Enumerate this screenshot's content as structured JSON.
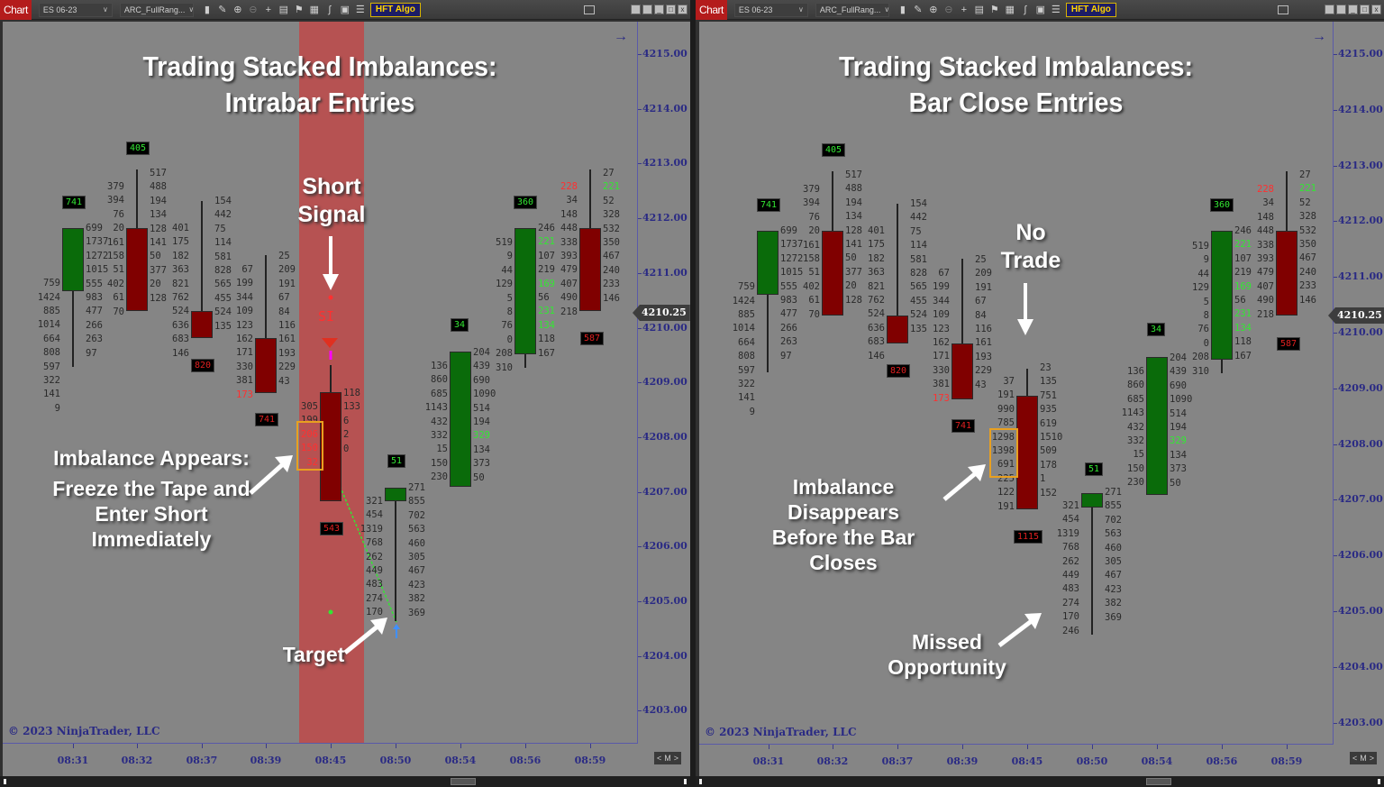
{
  "toolbar": {
    "chart_label": "Chart",
    "instrument": "ES 06-23",
    "bar_type": "ARC_FullRang...",
    "hft_button": "HFT Algo",
    "icons": [
      "bar-type-icon",
      "draw-pencil-icon",
      "zoom-in-icon",
      "zoom-out-icon",
      "crosshair-icon",
      "data-box-icon",
      "strategies-flag-icon",
      "chart-trader-icon",
      "indicators-icon",
      "templates-icon",
      "properties-list-icon"
    ]
  },
  "y_axis": {
    "labels": [
      "4215.00",
      "4214.00",
      "4213.00",
      "4212.00",
      "4211.00",
      "4210.00",
      "4209.00",
      "4208.00",
      "4207.00",
      "4206.00",
      "4205.00",
      "4204.00",
      "4203.00"
    ],
    "current_price": "4210.25"
  },
  "x_axis": {
    "labels": [
      "08:31",
      "08:32",
      "08:37",
      "08:39",
      "08:45",
      "08:50",
      "08:54",
      "08:56",
      "08:59"
    ]
  },
  "copyright": "© 2023 NinjaTrader, LLC",
  "nav_mini": {
    "prev": "<",
    "mid": "M",
    "next": ">"
  },
  "left_panel": {
    "title_line1": "Trading Stacked Imbalances:",
    "title_line2": "Intrabar Entries",
    "signal_label_line1": "Short",
    "signal_label_line2": "Signal",
    "si_marker": "SI",
    "annot_appears_line1": "Imbalance Appears:",
    "annot_appears_line2": "Freeze the Tape and",
    "annot_appears_line3": "Enter Short Immediately",
    "annot_target": "Target"
  },
  "right_panel": {
    "title_line1": "Trading Stacked Imbalances:",
    "title_line2": "Bar Close Entries",
    "no_trade_line1": "No",
    "no_trade_line2": "Trade",
    "annot_disappears_line1": "Imbalance Disappears",
    "annot_disappears_line2": "Before the Bar Closes",
    "annot_missed_line1": "Missed",
    "annot_missed_line2": "Opportunity"
  },
  "colors": {
    "bull": "#0a6b0a",
    "bear": "#800000",
    "buy_imbalance": "#33e633",
    "sell_imbalance": "#ff3030",
    "highlight_band": "#b65252",
    "axis_text": "#2a2a84",
    "imbalance_box": "#e8a020"
  },
  "footprint_bars_left": [
    {
      "time": "08:31",
      "dir": "bull",
      "delta": "741",
      "bid": [
        "",
        "",
        "",
        "759",
        "1424",
        "885",
        "1014",
        "664",
        "808",
        "597",
        "322",
        "141",
        "9"
      ],
      "ask": [
        "699",
        "1737",
        "1272",
        "1015",
        "555",
        "983",
        "477",
        "266",
        "263",
        "97",
        "",
        "",
        ""
      ]
    },
    {
      "time": "08:32",
      "dir": "bear",
      "delta": "405",
      "bid": [
        "379",
        "394",
        "76",
        "20",
        "161",
        "158",
        "51",
        "402",
        "61",
        "70"
      ],
      "ask": [
        "517",
        "488",
        "194",
        "134",
        "128",
        "141",
        "50",
        "377",
        "20",
        "128"
      ]
    },
    {
      "time": "08:37",
      "dir": "bear",
      "delta": "820",
      "bid": [
        "401",
        "175",
        "182",
        "363",
        "821",
        "762",
        "524",
        "636",
        "683",
        "146"
      ],
      "ask": [
        "154",
        "442",
        "75",
        "114",
        "581",
        "828",
        "565",
        "455",
        "524",
        "135"
      ]
    },
    {
      "time": "08:39",
      "dir": "bear",
      "delta": "741",
      "bid": [
        "67",
        "199",
        "344",
        "109",
        "123",
        "162",
        "171",
        "330",
        "381",
        "173"
      ],
      "ask": [
        "25",
        "209",
        "191",
        "67",
        "84",
        "116",
        "161",
        "193",
        "229",
        "43"
      ]
    },
    {
      "time": "08:45",
      "dir": "bear",
      "delta": "543",
      "bid": [
        "305",
        "199",
        "206",
        "150",
        "32"
      ],
      "ask": [
        "118",
        "133",
        "6",
        "2",
        "0"
      ]
    },
    {
      "time": "08:50",
      "dir": "bull",
      "delta": "51",
      "bid": [
        "321",
        "454",
        "1319",
        "768",
        "262",
        "449",
        "483",
        "274",
        "170"
      ],
      "ask": [
        "271",
        "855",
        "702",
        "563",
        "460",
        "305",
        "467",
        "423",
        "382",
        "369"
      ]
    },
    {
      "time": "08:54",
      "dir": "bull",
      "delta": "34",
      "bid": [
        "136",
        "860",
        "685",
        "1143",
        "432",
        "332",
        "15",
        "150",
        "230"
      ],
      "ask": [
        "204",
        "439",
        "690",
        "1090",
        "514",
        "194",
        "329",
        "134",
        "373",
        "50"
      ]
    },
    {
      "time": "08:56",
      "dir": "bull",
      "delta": "360",
      "bid": [
        "519",
        "9",
        "44",
        "129",
        "5",
        "8",
        "76",
        "0",
        "208",
        "310"
      ],
      "ask": [
        "246",
        "221",
        "107",
        "219",
        "169",
        "56",
        "231",
        "134",
        "118",
        "167"
      ]
    },
    {
      "time": "08:59",
      "dir": "bear",
      "delta": "587",
      "bid": [
        "228",
        "34",
        "148",
        "448",
        "338",
        "393",
        "479",
        "407",
        "490",
        "218"
      ],
      "ask": [
        "27",
        "221",
        "52",
        "328",
        "532",
        "350",
        "467",
        "240",
        "233",
        "146"
      ]
    }
  ],
  "footprint_bars_right_0845": {
    "time": "08:45",
    "dir": "bear",
    "delta": "1115",
    "bid": [
      "37",
      "191",
      "990",
      "785",
      "1298",
      "1398",
      "691",
      "225",
      "122",
      "191"
    ],
    "ask": [
      "23",
      "135",
      "751",
      "935",
      "619",
      "1510",
      "509",
      "178",
      "1",
      "152"
    ]
  },
  "footprint_bars_right_0850_extra_bid": "246"
}
